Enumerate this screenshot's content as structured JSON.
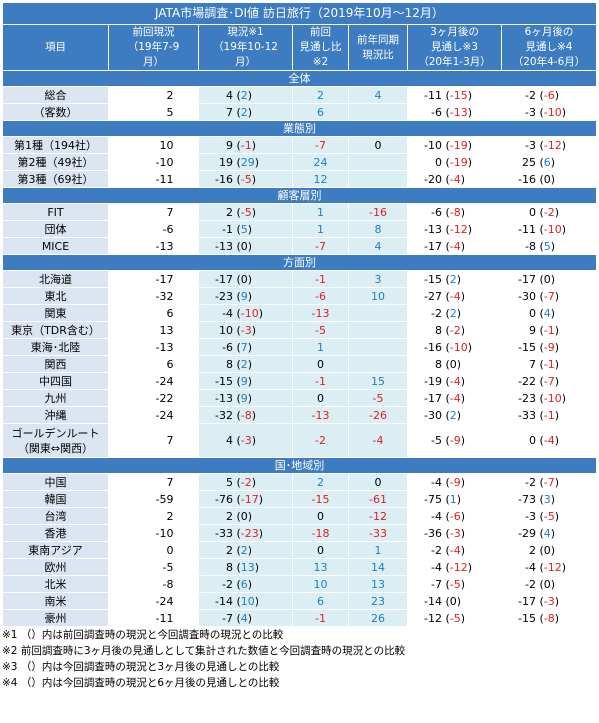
{
  "title": "JATA市場調査･DI値 訪日旅行（2019年10月～12月）",
  "headers": [
    "項目",
    "前回現況\n（19年7-9\n月）",
    "現況※1\n（19年10-12\n月）",
    "前回\n見通し比\n※2",
    "前年同期\n現況比",
    "3ヶ月後の\n見通し※3\n（20年1-3月）",
    "6ヶ月後の\n見通し※4\n（20年4-6月）"
  ],
  "sections": [
    {
      "title": "全体",
      "rows": [
        [
          "総合",
          2,
          4,
          2,
          2,
          4,
          -11,
          -15,
          -2,
          -6
        ],
        [
          "（客数）",
          5,
          7,
          2,
          6,
          null,
          -6,
          -13,
          -3,
          -10
        ]
      ]
    },
    {
      "title": "業態別",
      "rows": [
        [
          "第1種（194社）",
          10,
          9,
          -1,
          -7,
          0,
          -10,
          -19,
          -3,
          -12
        ],
        [
          "第2種（49社）",
          -10,
          19,
          29,
          24,
          null,
          0,
          -19,
          25,
          6
        ],
        [
          "第3種（69社）",
          -11,
          -16,
          -5,
          12,
          null,
          -20,
          -4,
          -16,
          0
        ]
      ]
    },
    {
      "title": "顧客層別",
      "rows": [
        [
          "FIT",
          7,
          2,
          -5,
          1,
          -16,
          -6,
          -8,
          0,
          -2
        ],
        [
          "団体",
          -6,
          -1,
          5,
          1,
          8,
          -13,
          -12,
          -11,
          -10
        ],
        [
          "MICE",
          -13,
          -13,
          0,
          -7,
          4,
          -17,
          -4,
          -8,
          5
        ]
      ]
    },
    {
      "title": "方面別",
      "rows": [
        [
          "北海道",
          -17,
          -17,
          0,
          -1,
          3,
          -15,
          2,
          -17,
          0
        ],
        [
          "東北",
          -32,
          -23,
          9,
          -6,
          10,
          -27,
          -4,
          -30,
          -7
        ],
        [
          "関東",
          6,
          -4,
          -10,
          -13,
          null,
          -2,
          2,
          0,
          4
        ],
        [
          "東京（TDR含む）",
          13,
          10,
          -3,
          -5,
          null,
          8,
          -2,
          9,
          -1
        ],
        [
          "東海･北陸",
          -13,
          -6,
          7,
          1,
          null,
          -16,
          -10,
          -15,
          -9
        ],
        [
          "関西",
          6,
          8,
          2,
          0,
          null,
          8,
          0,
          7,
          -1
        ],
        [
          "中四国",
          -24,
          -15,
          9,
          -1,
          15,
          -19,
          -4,
          -22,
          -7
        ],
        [
          "九州",
          -22,
          -13,
          9,
          0,
          -5,
          -17,
          -4,
          -23,
          -10
        ],
        [
          "沖縄",
          -24,
          -32,
          -8,
          -13,
          -26,
          -30,
          2,
          -33,
          -1
        ],
        [
          "ゴールデンルート\n（関東⇔関西）",
          7,
          4,
          -3,
          -2,
          -4,
          -5,
          -9,
          0,
          -4
        ]
      ]
    },
    {
      "title": "国･地域別",
      "rows": [
        [
          "中国",
          7,
          5,
          -2,
          2,
          0,
          -4,
          -9,
          -2,
          -7
        ],
        [
          "韓国",
          -59,
          -76,
          -17,
          -15,
          -61,
          -75,
          1,
          -73,
          3
        ],
        [
          "台湾",
          2,
          2,
          0,
          0,
          -12,
          -4,
          -6,
          -3,
          -5
        ],
        [
          "香港",
          -10,
          -33,
          -23,
          -18,
          -33,
          -36,
          -3,
          -29,
          4
        ],
        [
          "東南アジア",
          0,
          2,
          2,
          0,
          1,
          -2,
          -4,
          2,
          0
        ],
        [
          "欧州",
          -5,
          8,
          13,
          13,
          14,
          -4,
          -12,
          -4,
          -12
        ],
        [
          "北米",
          -8,
          -2,
          6,
          10,
          13,
          -7,
          -5,
          -2,
          0
        ],
        [
          "南米",
          -24,
          -14,
          10,
          6,
          23,
          -14,
          0,
          -17,
          -3
        ],
        [
          "豪州",
          -11,
          -7,
          4,
          -1,
          26,
          -12,
          -5,
          -15,
          -8
        ]
      ]
    }
  ],
  "footnotes": [
    "※1 （）内は前回調査時の現況と今回調査時の現況との比較",
    "※2 前回調査時に3ヶ月後の見通しとして集計された数値と今回調査時の現況との比較",
    "※3 （）内は今回調査時の現況と3ヶ月後の見通しとの比較",
    "※4 （）内は今回調査時の現況と6ヶ月後の見通しとの比較"
  ]
}
